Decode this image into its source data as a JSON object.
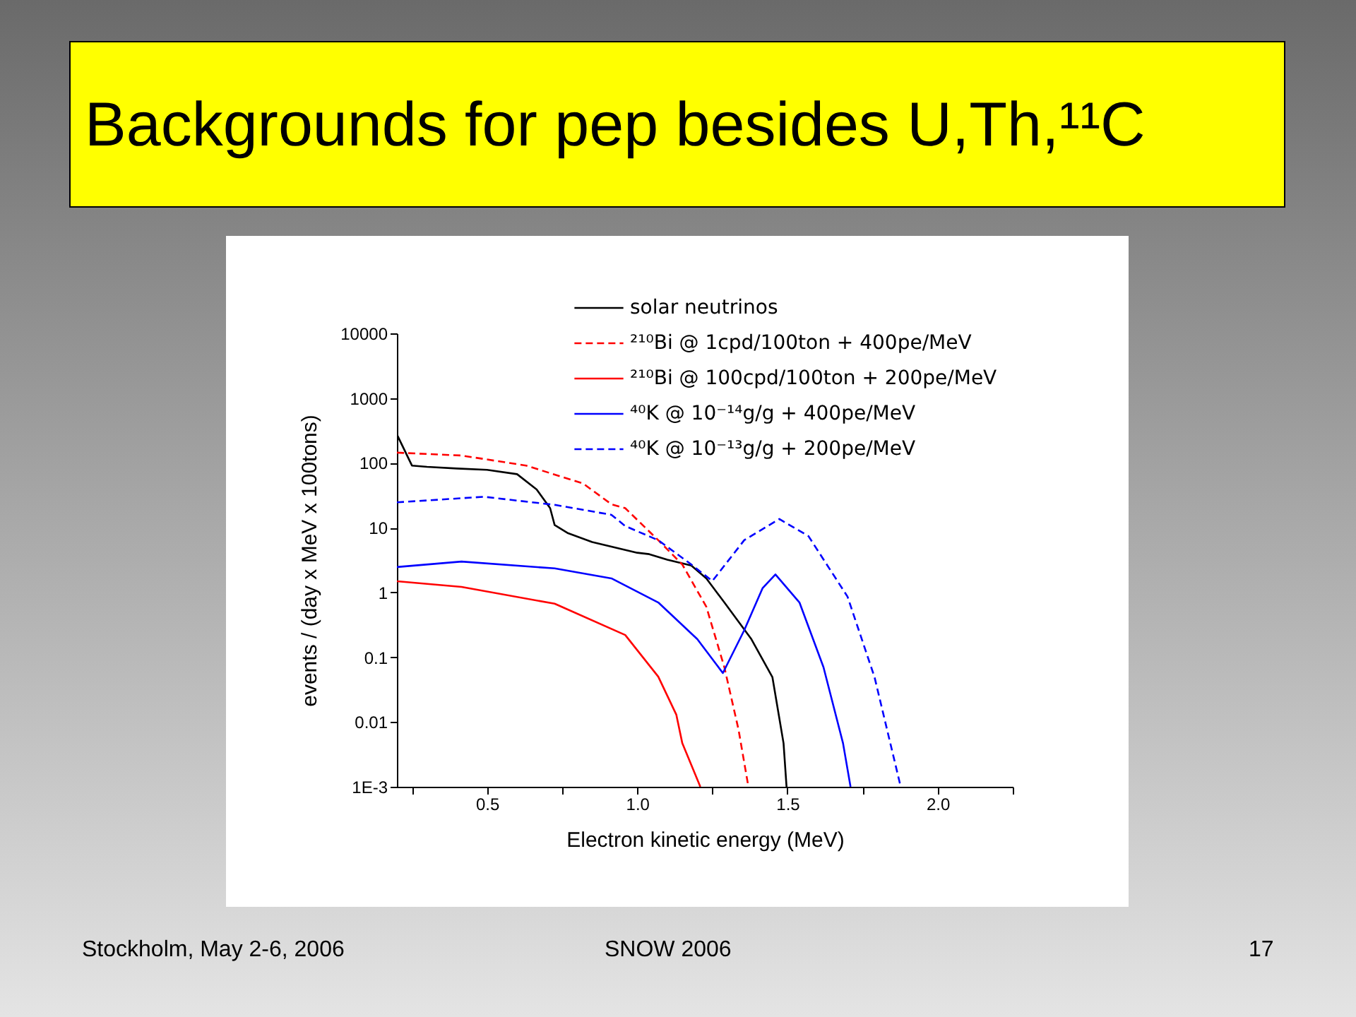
{
  "chart_data": {
    "type": "line",
    "title": "Backgrounds for pep besides U,Th,¹¹C",
    "xlabel": "Electron kinetic energy (MeV)",
    "ylabel": "events / (day x MeV x 100tons)",
    "log": "y",
    "grid": false,
    "legend": "top right",
    "marker": "none",
    "xlim": [
      0.2,
      2.25
    ],
    "xticks": [
      {
        "value": 0.25,
        "label": null
      },
      {
        "value": 0.5,
        "label": "0.5"
      },
      {
        "value": 0.75,
        "label": null
      },
      {
        "value": 1.0,
        "label": "1.0"
      },
      {
        "value": 1.25,
        "label": null
      },
      {
        "value": 1.5,
        "label": "1.5"
      },
      {
        "value": 1.75,
        "label": null
      },
      {
        "value": 2.0,
        "label": "2.0"
      },
      {
        "value": 2.25,
        "label": null
      }
    ],
    "ylim": [
      0.001,
      10000
    ],
    "yticks": [
      {
        "value": 0.001,
        "label": "1E-3"
      },
      0.01,
      0.1,
      1,
      10,
      100,
      1000,
      10000
    ],
    "annotations": [
      "Stockholm, May 2-6, 2006",
      "SNOW 2006",
      "17"
    ],
    "series": [
      {
        "name": "solar neutrinos",
        "color": "#000000",
        "line_style": "solid",
        "x": [
          0.2,
          0.25,
          0.3,
          0.4,
          0.5,
          0.6,
          0.665,
          0.71,
          0.725,
          0.77,
          0.85,
          1.0,
          1.04,
          1.1,
          1.18,
          1.23,
          1.29,
          1.38,
          1.45,
          1.487,
          1.497
        ],
        "values": [
          275,
          91,
          87,
          82,
          78,
          67,
          39,
          20,
          11,
          8.2,
          6,
          4.1,
          3.9,
          3.2,
          2.6,
          1.65,
          0.7,
          0.19,
          0.049,
          0.0047,
          0.001
        ]
      },
      {
        "name": "²¹⁰Bi @ 1cpd/100ton + 400pe/MeV",
        "color": "#ff0000",
        "line_style": "dashed",
        "x": [
          0.2,
          0.415,
          0.63,
          0.82,
          0.914,
          0.96,
          1.07,
          1.15,
          1.23,
          1.29,
          1.337,
          1.37
        ],
        "values": [
          144,
          130,
          91,
          48,
          23,
          20,
          6.4,
          2.7,
          0.6,
          0.07,
          0.0077,
          0.001
        ]
      },
      {
        "name": "²¹⁰Bi @ 100cpd/100ton + 200pe/MeV",
        "color": "#ff0000",
        "line_style": "solid",
        "x": [
          0.2,
          0.415,
          0.725,
          0.96,
          1.07,
          1.13,
          1.15,
          1.21
        ],
        "values": [
          1.49,
          1.22,
          0.67,
          0.22,
          0.05,
          0.013,
          0.0047,
          0.001
        ]
      },
      {
        "name": "⁴⁰K @ 10⁻¹⁴g/g + 400pe/MeV",
        "color": "#0000ff",
        "line_style": "solid",
        "x": [
          0.2,
          0.415,
          0.725,
          0.914,
          1.07,
          1.2,
          1.285,
          1.356,
          1.417,
          1.46,
          1.54,
          1.62,
          1.685,
          1.71
        ],
        "values": [
          2.47,
          3.0,
          2.35,
          1.65,
          0.7,
          0.19,
          0.057,
          0.26,
          1.16,
          1.9,
          0.7,
          0.07,
          0.0047,
          0.001
        ]
      },
      {
        "name": "⁴⁰K @ 10⁻¹³g/g + 200pe/MeV",
        "color": "#0000ff",
        "line_style": "dashed",
        "x": [
          0.2,
          0.49,
          0.725,
          0.914,
          0.96,
          1.07,
          1.18,
          1.25,
          1.356,
          1.473,
          1.57,
          1.7,
          1.79,
          1.877
        ],
        "values": [
          24.6,
          30,
          22.5,
          15.8,
          10.6,
          6.4,
          2.7,
          1.5,
          6.4,
          13.6,
          7.4,
          0.86,
          0.049,
          0.001
        ]
      }
    ]
  }
}
